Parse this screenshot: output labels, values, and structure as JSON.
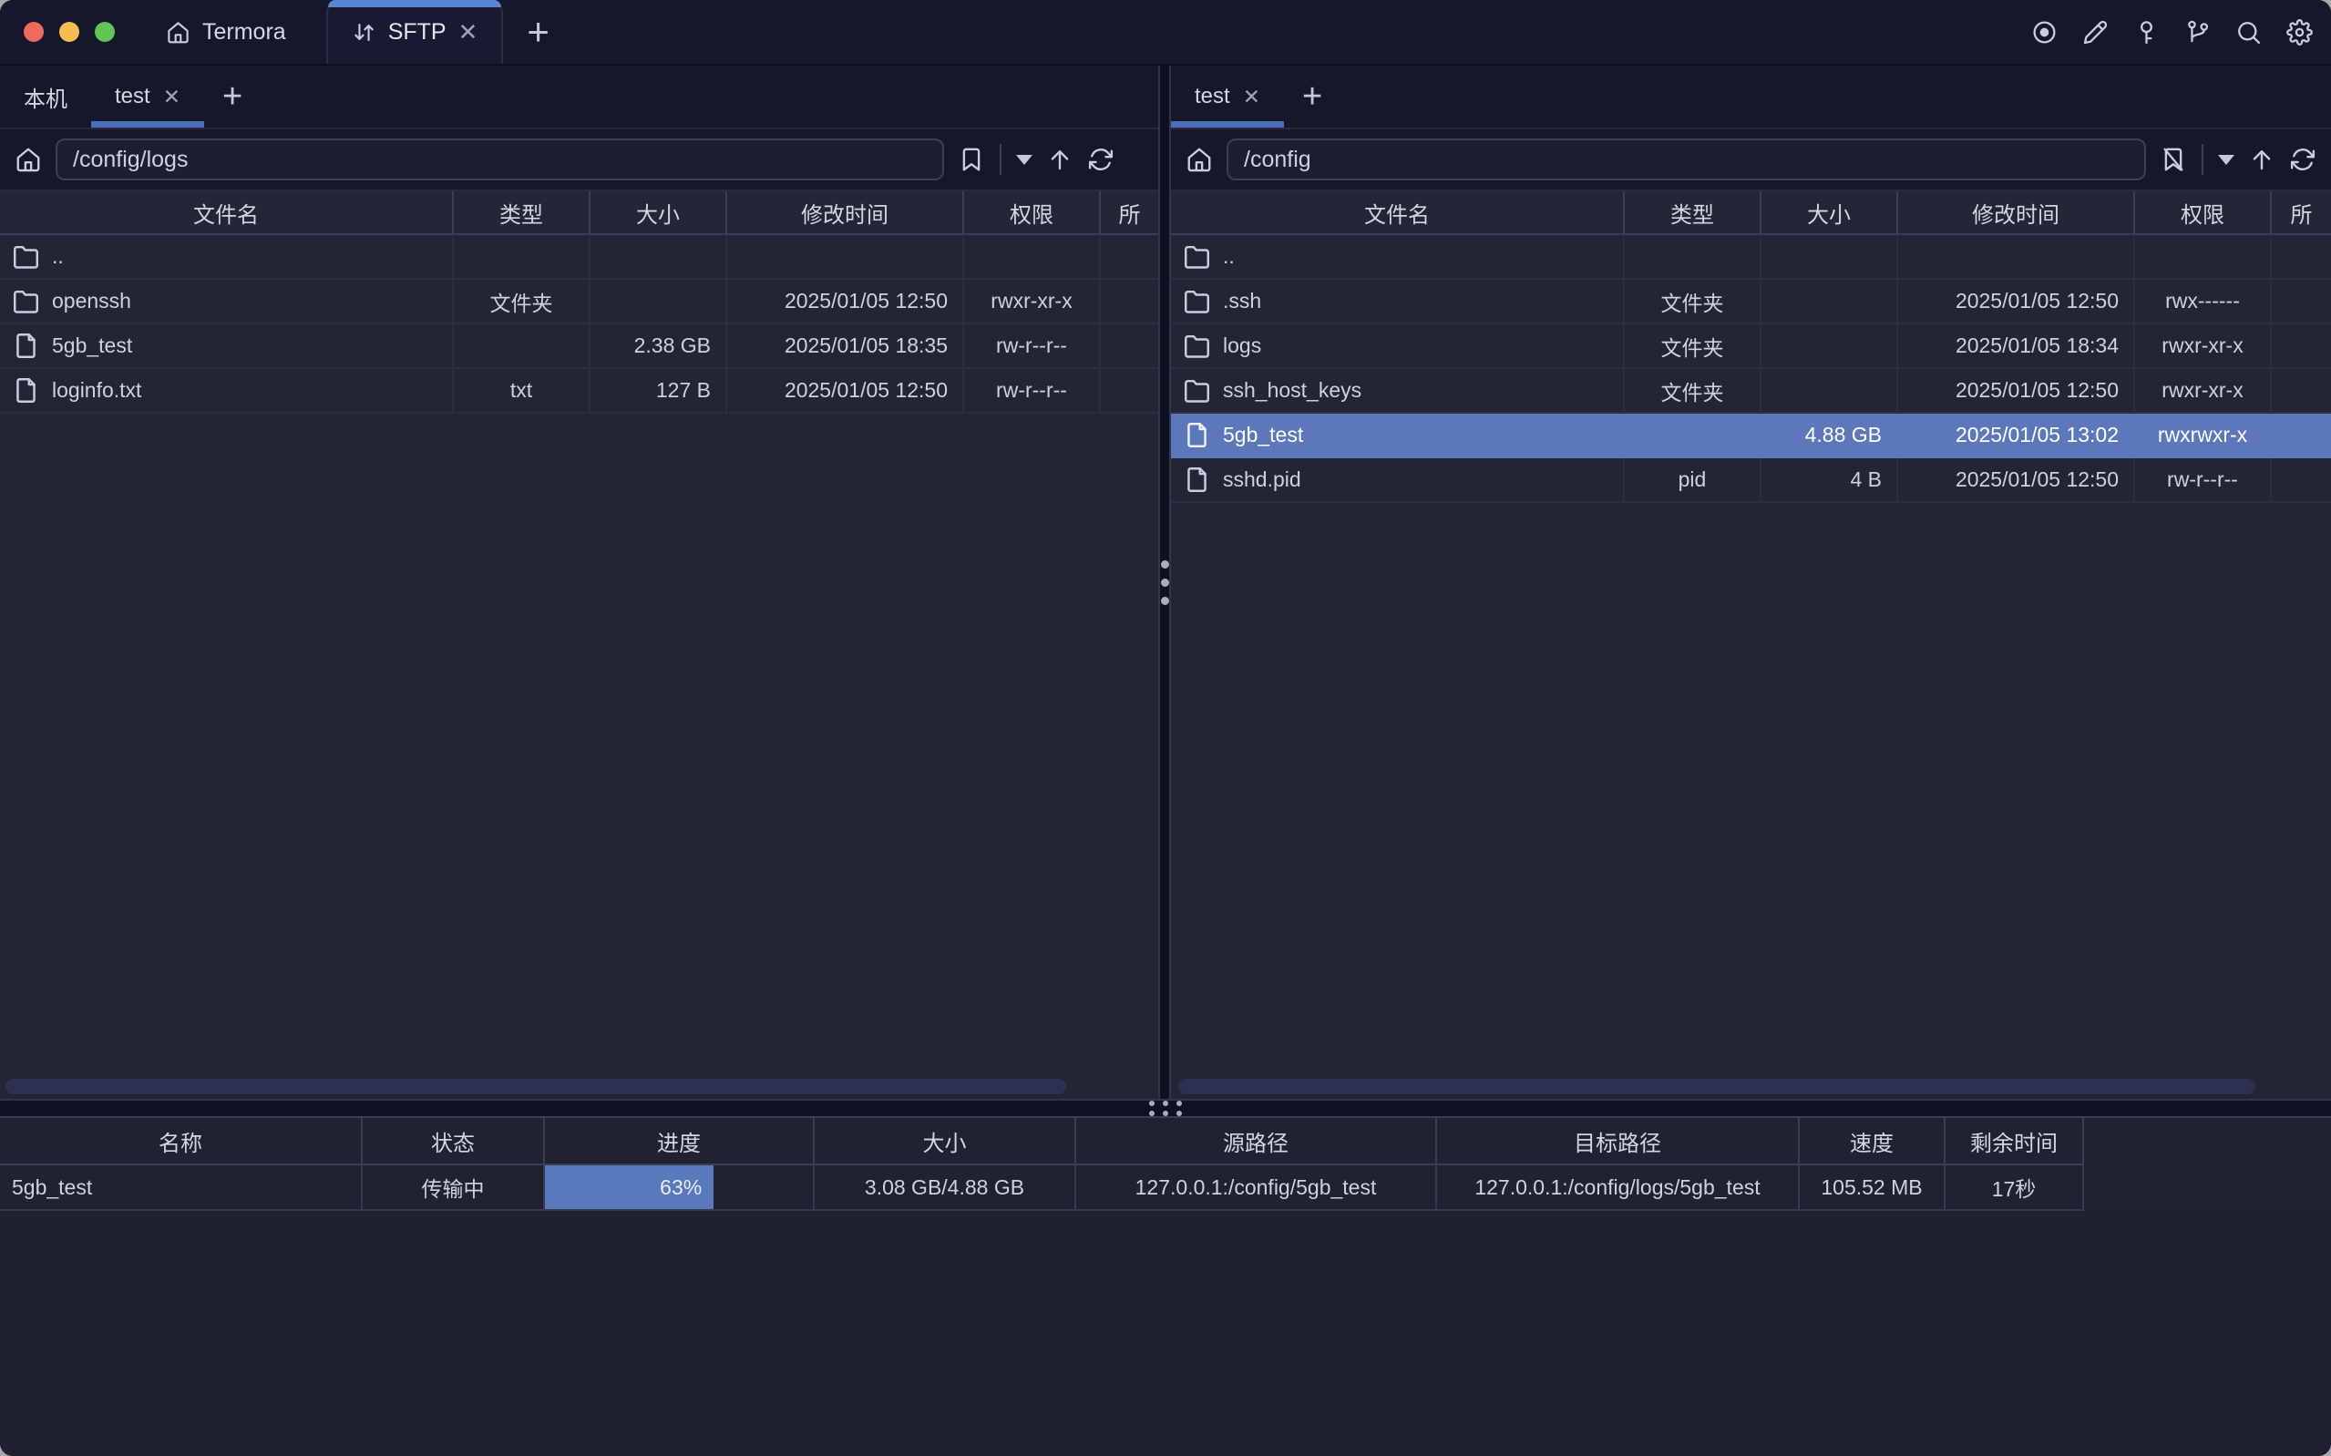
{
  "titlebar": {
    "app_tab_label": "Termora",
    "sftp_tab_label": "SFTP",
    "close_glyph": "✕",
    "add_glyph": "+"
  },
  "icons": {
    "left": [
      "home-icon",
      "bookmark-icon",
      "chevron-down-icon",
      "arrow-up-icon",
      "refresh-icon"
    ],
    "right": [
      "home-icon",
      "bookmark-off-icon",
      "chevron-down-icon",
      "arrow-up-icon",
      "refresh-icon"
    ],
    "titlebar": [
      "record-icon",
      "pencil-icon",
      "key-icon",
      "branch-icon",
      "search-icon",
      "gear-icon"
    ]
  },
  "colors": {
    "selection_blue": "#5d78ba",
    "progress_blue": "#587abd",
    "tab_accent_blue": "#5787d2",
    "pane_underline_blue": "#4a6fb8",
    "chrome_bg": "#15172a",
    "table_bg": "#232534"
  },
  "left_pane": {
    "tabs": [
      {
        "label": "本机"
      },
      {
        "label": "test"
      }
    ],
    "add_glyph": "+",
    "close_glyph": "✕",
    "path": "/config/logs",
    "columns": [
      "文件名",
      "类型",
      "大小",
      "修改时间",
      "权限",
      "所"
    ],
    "rows": [
      {
        "name": "..",
        "type": "",
        "size": "",
        "mtime": "",
        "perm": ""
      },
      {
        "name": "openssh",
        "type": "文件夹",
        "size": "",
        "mtime": "2025/01/05 12:50",
        "perm": "rwxr-xr-x"
      },
      {
        "name": "5gb_test",
        "type": "",
        "size": "2.38 GB",
        "mtime": "2025/01/05 18:35",
        "perm": "rw-r--r--"
      },
      {
        "name": "loginfo.txt",
        "type": "txt",
        "size": "127 B",
        "mtime": "2025/01/05 12:50",
        "perm": "rw-r--r--"
      }
    ]
  },
  "right_pane": {
    "tabs": [
      {
        "label": "test"
      }
    ],
    "add_glyph": "+",
    "close_glyph": "✕",
    "path": "/config",
    "columns": [
      "文件名",
      "类型",
      "大小",
      "修改时间",
      "权限",
      "所"
    ],
    "rows": [
      {
        "name": "..",
        "type": "",
        "size": "",
        "mtime": "",
        "perm": ""
      },
      {
        "name": ".ssh",
        "type": "文件夹",
        "size": "",
        "mtime": "2025/01/05 12:50",
        "perm": "rwx------"
      },
      {
        "name": "logs",
        "type": "文件夹",
        "size": "",
        "mtime": "2025/01/05 18:34",
        "perm": "rwxr-xr-x"
      },
      {
        "name": "ssh_host_keys",
        "type": "文件夹",
        "size": "",
        "mtime": "2025/01/05 12:50",
        "perm": "rwxr-xr-x"
      },
      {
        "name": "5gb_test",
        "type": "",
        "size": "4.88 GB",
        "mtime": "2025/01/05 13:02",
        "perm": "rwxrwxr-x"
      },
      {
        "name": "sshd.pid",
        "type": "pid",
        "size": "4 B",
        "mtime": "2025/01/05 12:50",
        "perm": "rw-r--r--"
      }
    ]
  },
  "transfer": {
    "columns": [
      "名称",
      "状态",
      "进度",
      "大小",
      "源路径",
      "目标路径",
      "速度",
      "剩余时间"
    ],
    "rows": [
      {
        "name": "5gb_test",
        "status": "传输中",
        "progress_label": "63%",
        "progress_pct": 63,
        "size": "3.08 GB/4.88 GB",
        "source": "127.0.0.1:/config/5gb_test",
        "target": "127.0.0.1:/config/logs/5gb_test",
        "speed": "105.52 MB",
        "remaining": "17秒"
      }
    ]
  }
}
